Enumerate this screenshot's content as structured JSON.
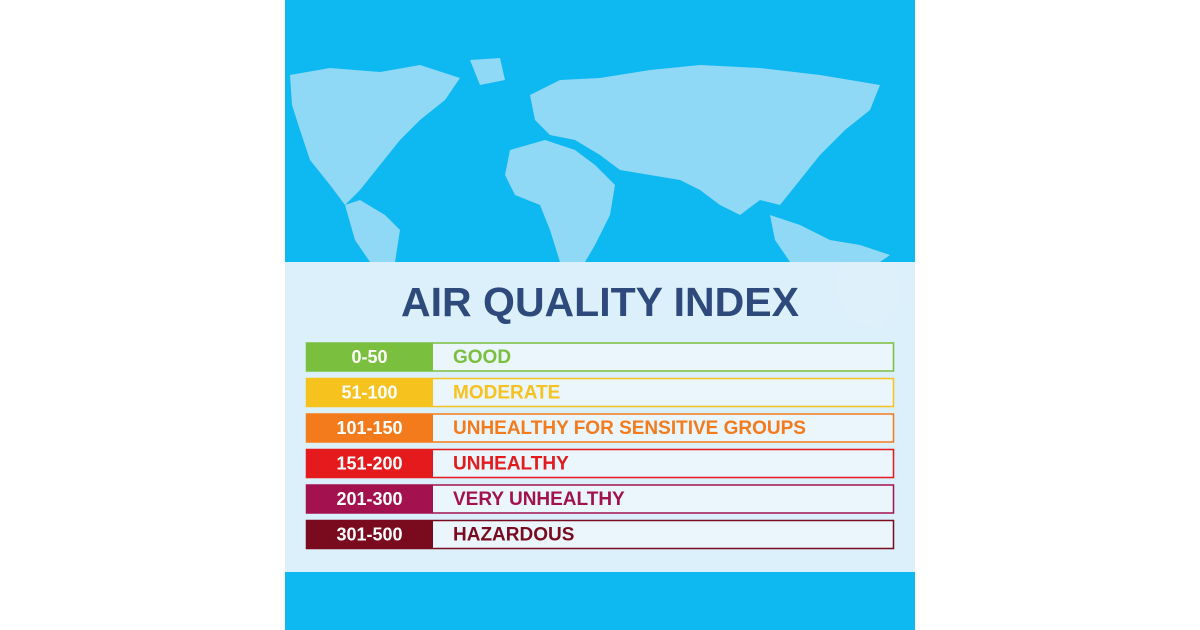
{
  "title": "AIR QUALITY INDEX",
  "rows": [
    {
      "range": "0-50",
      "label": "GOOD",
      "color": "#7bbf3f"
    },
    {
      "range": "51-100",
      "label": "MODERATE",
      "color": "#f6c21d"
    },
    {
      "range": "101-150",
      "label": "UNHEALTHY FOR SENSITIVE GROUPS",
      "color": "#f47b1c"
    },
    {
      "range": "151-200",
      "label": "UNHEALTHY",
      "color": "#e41a1c"
    },
    {
      "range": "201-300",
      "label": "VERY UNHEALTHY",
      "color": "#a3124f"
    },
    {
      "range": "301-500",
      "label": "HAZARDOUS",
      "color": "#7a0b1f"
    }
  ]
}
